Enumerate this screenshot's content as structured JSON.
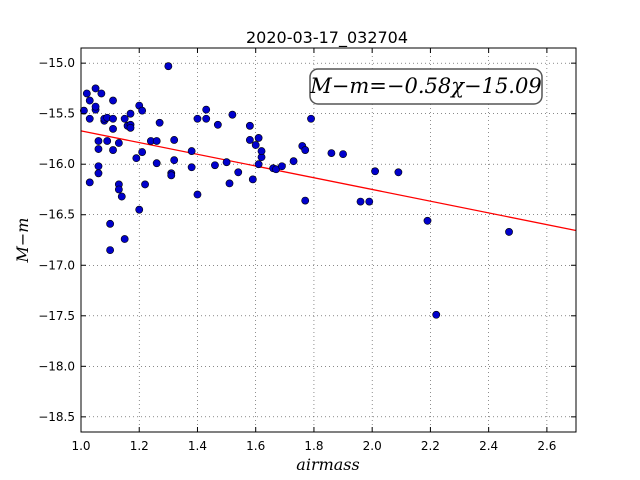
{
  "chart_data": {
    "type": "scatter",
    "title": "2020-03-17_032704",
    "xlabel": "airmass",
    "ylabel": "M−m",
    "xlim": [
      1.0,
      2.7
    ],
    "ylim": [
      -18.65,
      -14.85
    ],
    "ylim_inverted": true,
    "grid": true,
    "x_ticks": [
      "1.0",
      "1.2",
      "1.4",
      "1.6",
      "1.8",
      "2.0",
      "2.2",
      "2.4",
      "2.6"
    ],
    "x_tick_values": [
      1.0,
      1.2,
      1.4,
      1.6,
      1.8,
      2.0,
      2.2,
      2.4,
      2.6
    ],
    "y_ticks": [
      "−15.0",
      "−15.5",
      "−16.0",
      "−16.5",
      "−17.0",
      "−17.5",
      "−18.0",
      "−18.5"
    ],
    "y_tick_values": [
      -15.0,
      -15.5,
      -16.0,
      -16.5,
      -17.0,
      -17.5,
      -18.0,
      -18.5
    ],
    "annotation": "M−m=−0.58χ−15.09",
    "fit": {
      "slope": -0.58,
      "intercept": -15.09,
      "color": "#ff0000"
    },
    "point_color": "#0000cc",
    "points": [
      [
        1.01,
        -15.47
      ],
      [
        1.02,
        -15.3
      ],
      [
        1.03,
        -15.37
      ],
      [
        1.03,
        -15.55
      ],
      [
        1.03,
        -16.18
      ],
      [
        1.05,
        -15.46
      ],
      [
        1.05,
        -15.43
      ],
      [
        1.05,
        -15.25
      ],
      [
        1.06,
        -15.77
      ],
      [
        1.06,
        -15.85
      ],
      [
        1.06,
        -16.02
      ],
      [
        1.06,
        -16.09
      ],
      [
        1.07,
        -15.3
      ],
      [
        1.08,
        -15.57
      ],
      [
        1.08,
        -15.55
      ],
      [
        1.09,
        -15.54
      ],
      [
        1.09,
        -15.77
      ],
      [
        1.1,
        -16.59
      ],
      [
        1.1,
        -16.85
      ],
      [
        1.11,
        -15.37
      ],
      [
        1.11,
        -15.55
      ],
      [
        1.11,
        -15.65
      ],
      [
        1.11,
        -15.86
      ],
      [
        1.13,
        -16.2
      ],
      [
        1.13,
        -16.25
      ],
      [
        1.13,
        -15.79
      ],
      [
        1.14,
        -16.32
      ],
      [
        1.15,
        -15.55
      ],
      [
        1.15,
        -16.74
      ],
      [
        1.16,
        -15.62
      ],
      [
        1.17,
        -15.5
      ],
      [
        1.17,
        -15.61
      ],
      [
        1.17,
        -15.64
      ],
      [
        1.19,
        -15.94
      ],
      [
        1.2,
        -16.45
      ],
      [
        1.2,
        -15.42
      ],
      [
        1.21,
        -15.88
      ],
      [
        1.21,
        -15.47
      ],
      [
        1.22,
        -16.2
      ],
      [
        1.24,
        -15.77
      ],
      [
        1.26,
        -15.77
      ],
      [
        1.26,
        -15.99
      ],
      [
        1.27,
        -15.59
      ],
      [
        1.3,
        -15.03
      ],
      [
        1.31,
        -16.09
      ],
      [
        1.31,
        -16.11
      ],
      [
        1.32,
        -15.96
      ],
      [
        1.32,
        -15.76
      ],
      [
        1.38,
        -15.87
      ],
      [
        1.38,
        -16.03
      ],
      [
        1.4,
        -16.3
      ],
      [
        1.4,
        -15.55
      ],
      [
        1.43,
        -15.55
      ],
      [
        1.43,
        -15.46
      ],
      [
        1.46,
        -16.01
      ],
      [
        1.47,
        -15.61
      ],
      [
        1.5,
        -15.98
      ],
      [
        1.51,
        -16.19
      ],
      [
        1.52,
        -15.51
      ],
      [
        1.54,
        -16.08
      ],
      [
        1.58,
        -15.76
      ],
      [
        1.58,
        -15.62
      ],
      [
        1.59,
        -16.15
      ],
      [
        1.6,
        -15.81
      ],
      [
        1.61,
        -15.74
      ],
      [
        1.61,
        -16.0
      ],
      [
        1.62,
        -15.93
      ],
      [
        1.62,
        -15.87
      ],
      [
        1.66,
        -16.04
      ],
      [
        1.67,
        -16.05
      ],
      [
        1.69,
        -16.02
      ],
      [
        1.73,
        -15.97
      ],
      [
        1.76,
        -15.82
      ],
      [
        1.77,
        -15.86
      ],
      [
        1.77,
        -16.36
      ],
      [
        1.79,
        -15.55
      ],
      [
        1.86,
        -15.89
      ],
      [
        1.9,
        -15.9
      ],
      [
        1.96,
        -16.37
      ],
      [
        1.99,
        -16.37
      ],
      [
        2.01,
        -16.07
      ],
      [
        2.09,
        -16.08
      ],
      [
        2.19,
        -16.56
      ],
      [
        2.22,
        -17.49
      ],
      [
        2.47,
        -16.67
      ]
    ]
  }
}
